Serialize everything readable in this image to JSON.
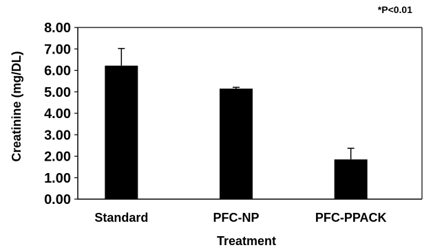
{
  "chart_data": {
    "type": "bar",
    "title": "",
    "xlabel": "Treatment",
    "ylabel": "Creatinine (mg/DL)",
    "annotation": "*P<0.01",
    "categories": [
      "Standard",
      "PFC-NP",
      "PFC-PPACK"
    ],
    "values": [
      6.22,
      5.15,
      1.85
    ],
    "error_bars": [
      0.8,
      0.06,
      0.52
    ],
    "ylim": [
      0,
      8
    ],
    "yticks": [
      "0.00",
      "1.00",
      "2.00",
      "3.00",
      "4.00",
      "5.00",
      "6.00",
      "7.00",
      "8.00"
    ],
    "grid": false,
    "legend": "none",
    "bar_color": "#000000"
  }
}
